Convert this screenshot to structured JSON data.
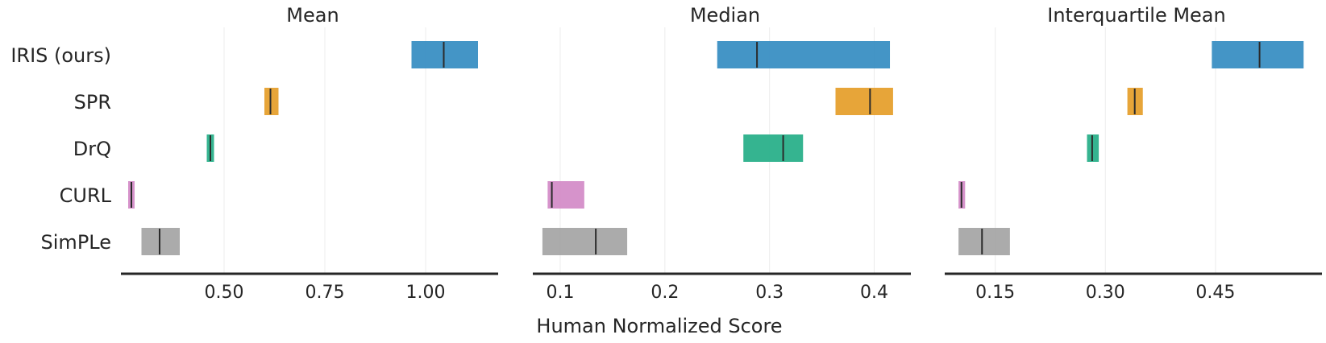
{
  "chart_data": {
    "type": "interval",
    "xlabel": "Human Normalized Score",
    "categories": [
      "IRIS (ours)",
      "SPR",
      "DrQ",
      "CURL",
      "SimPLe"
    ],
    "colors": [
      "#3a8fc3",
      "#e6a02e",
      "#2ab08a",
      "#d48dc8",
      "#a6a6a6"
    ],
    "panels": [
      {
        "title": "Mean",
        "xlim": [
          0.26,
          1.18
        ],
        "xticks": [
          0.5,
          0.75,
          1.0
        ],
        "xtick_labels": [
          "0.50",
          "0.75",
          "1.00"
        ],
        "intervals": [
          {
            "low": 0.965,
            "high": 1.13,
            "point": 1.045
          },
          {
            "low": 0.6,
            "high": 0.635,
            "point": 0.615
          },
          {
            "low": 0.457,
            "high": 0.475,
            "point": 0.466
          },
          {
            "low": 0.262,
            "high": 0.278,
            "point": 0.27
          },
          {
            "low": 0.295,
            "high": 0.39,
            "point": 0.34
          }
        ]
      },
      {
        "title": "Median",
        "xlim": [
          0.08,
          0.435
        ],
        "xticks": [
          0.1,
          0.2,
          0.3,
          0.4
        ],
        "xtick_labels": [
          "0.1",
          "0.2",
          "0.3",
          "0.4"
        ],
        "intervals": [
          {
            "low": 0.25,
            "high": 0.415,
            "point": 0.288
          },
          {
            "low": 0.363,
            "high": 0.418,
            "point": 0.396
          },
          {
            "low": 0.275,
            "high": 0.332,
            "point": 0.313
          },
          {
            "low": 0.088,
            "high": 0.123,
            "point": 0.092
          },
          {
            "low": 0.083,
            "high": 0.164,
            "point": 0.134
          }
        ]
      },
      {
        "title": "Interquartile Mean",
        "xlim": [
          0.09,
          0.595
        ],
        "xticks": [
          0.15,
          0.3,
          0.45
        ],
        "xtick_labels": [
          "0.15",
          "0.30",
          "0.45"
        ],
        "intervals": [
          {
            "low": 0.445,
            "high": 0.57,
            "point": 0.51
          },
          {
            "low": 0.33,
            "high": 0.351,
            "point": 0.34
          },
          {
            "low": 0.275,
            "high": 0.291,
            "point": 0.282
          },
          {
            "low": 0.1,
            "high": 0.109,
            "point": 0.104
          },
          {
            "low": 0.1,
            "high": 0.17,
            "point": 0.132
          }
        ]
      }
    ]
  }
}
